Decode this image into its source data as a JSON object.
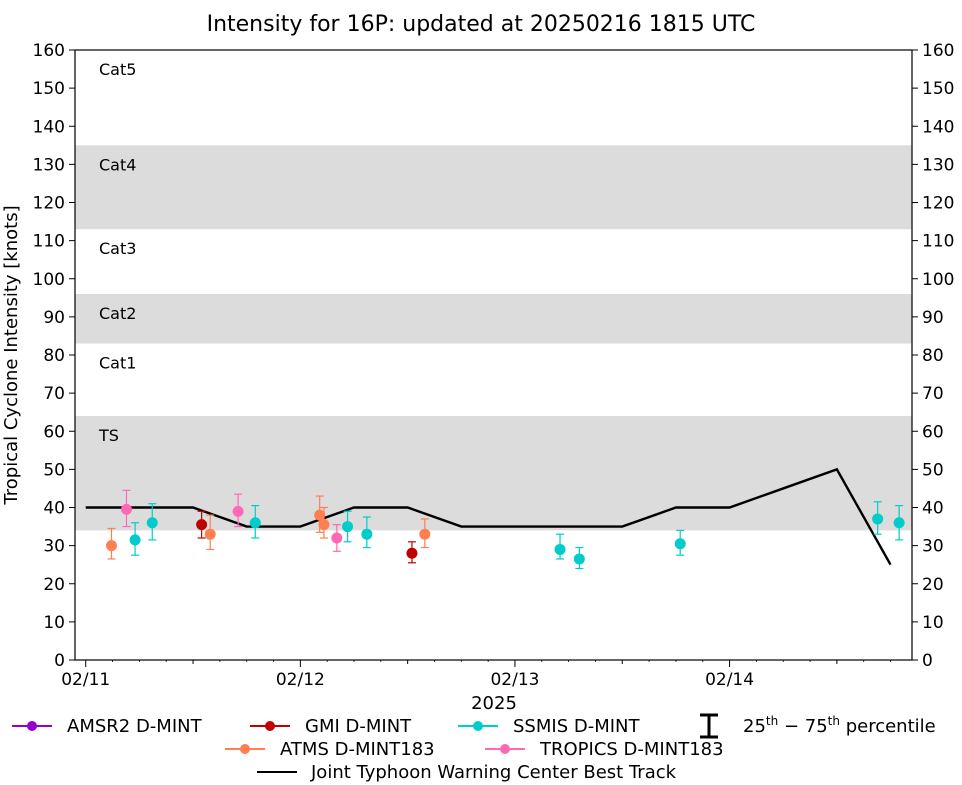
{
  "chart_data": {
    "type": "scatter",
    "title": "Intensity for 16P: updated at 20250216 1815 UTC",
    "ylabel": "Tropical Cyclone Intensity [knots]",
    "xlabel": "2025",
    "ylim": [
      0,
      160
    ],
    "xlim": [
      -0.05,
      3.85
    ],
    "x_units": "days since 02/11 00 UTC",
    "y_ticks": [
      "0",
      "10",
      "20",
      "30",
      "40",
      "50",
      "60",
      "70",
      "80",
      "90",
      "100",
      "110",
      "120",
      "130",
      "140",
      "150",
      "160"
    ],
    "x_ticks": [
      {
        "x": 0,
        "label": "02/11"
      },
      {
        "x": 1,
        "label": "02/12"
      },
      {
        "x": 2,
        "label": "02/13"
      },
      {
        "x": 3,
        "label": "02/14"
      }
    ],
    "x_minor_ticks": [
      0.5,
      1.5,
      2.5,
      3.5
    ],
    "bands": [
      {
        "label": "TS",
        "y0": 34,
        "y1": 64,
        "shaded": true
      },
      {
        "label": "Cat1",
        "y0": 64,
        "y1": 83,
        "shaded": false
      },
      {
        "label": "Cat2",
        "y0": 83,
        "y1": 96,
        "shaded": true
      },
      {
        "label": "Cat3",
        "y0": 96,
        "y1": 113,
        "shaded": false
      },
      {
        "label": "Cat4",
        "y0": 113,
        "y1": 135,
        "shaded": true
      },
      {
        "label": "Cat5",
        "y0": 135,
        "y1": 160,
        "shaded": false
      }
    ],
    "best_track": {
      "name": "Joint Typhoon Warning Center Best Track",
      "color": "#000000",
      "x": [
        0,
        0.25,
        0.5,
        0.75,
        1.0,
        1.25,
        1.5,
        1.75,
        2.0,
        2.25,
        2.5,
        2.75,
        3.0,
        3.25,
        3.5,
        3.75
      ],
      "y": [
        40,
        40,
        40,
        35,
        35,
        40,
        40,
        35,
        35,
        35,
        35,
        40,
        40,
        45,
        50,
        25
      ]
    },
    "series": [
      {
        "name": "AMSR2 D-MINT",
        "color": "#9400d3",
        "points": []
      },
      {
        "name": "GMI D-MINT",
        "color": "#c00000",
        "points": [
          {
            "x": 0.54,
            "y": 35.5,
            "lo": 32,
            "hi": 39
          },
          {
            "x": 1.52,
            "y": 28,
            "lo": 25.5,
            "hi": 31
          }
        ]
      },
      {
        "name": "SSMIS D-MINT",
        "color": "#00cccc",
        "points": [
          {
            "x": 0.23,
            "y": 31.5,
            "lo": 27.5,
            "hi": 36
          },
          {
            "x": 0.31,
            "y": 36,
            "lo": 31.5,
            "hi": 41
          },
          {
            "x": 0.79,
            "y": 36,
            "lo": 32,
            "hi": 40.5
          },
          {
            "x": 1.22,
            "y": 35,
            "lo": 31,
            "hi": 39
          },
          {
            "x": 1.31,
            "y": 33,
            "lo": 29.5,
            "hi": 37.5
          },
          {
            "x": 2.21,
            "y": 29,
            "lo": 26.5,
            "hi": 33
          },
          {
            "x": 2.3,
            "y": 26.5,
            "lo": 24,
            "hi": 29.5
          },
          {
            "x": 2.77,
            "y": 30.5,
            "lo": 27.5,
            "hi": 34
          },
          {
            "x": 3.69,
            "y": 37,
            "lo": 33,
            "hi": 41.5
          },
          {
            "x": 3.79,
            "y": 36,
            "lo": 31.5,
            "hi": 40.5
          }
        ]
      },
      {
        "name": "ATMS D-MINT183",
        "color": "#ff7f50",
        "points": [
          {
            "x": 0.12,
            "y": 30,
            "lo": 26.5,
            "hi": 34.5
          },
          {
            "x": 0.58,
            "y": 33,
            "lo": 29,
            "hi": 38
          },
          {
            "x": 1.09,
            "y": 38,
            "lo": 33.5,
            "hi": 43
          },
          {
            "x": 1.11,
            "y": 35.5,
            "lo": 32,
            "hi": 40
          },
          {
            "x": 1.58,
            "y": 33,
            "lo": 29.5,
            "hi": 37
          }
        ]
      },
      {
        "name": "TROPICS D-MINT183",
        "color": "#ff69b4",
        "points": [
          {
            "x": 0.19,
            "y": 39.5,
            "lo": 35,
            "hi": 44.5
          },
          {
            "x": 0.71,
            "y": 39,
            "lo": 35,
            "hi": 43.5
          },
          {
            "x": 1.17,
            "y": 32,
            "lo": 28.5,
            "hi": 35.5
          }
        ]
      }
    ],
    "legend": {
      "placement": "bottom",
      "percentile_label_base": "25",
      "percentile_label_sup1": "th",
      "percentile_label_mid": " − 75",
      "percentile_label_sup2": "th",
      "percentile_label_tail": " percentile"
    }
  }
}
